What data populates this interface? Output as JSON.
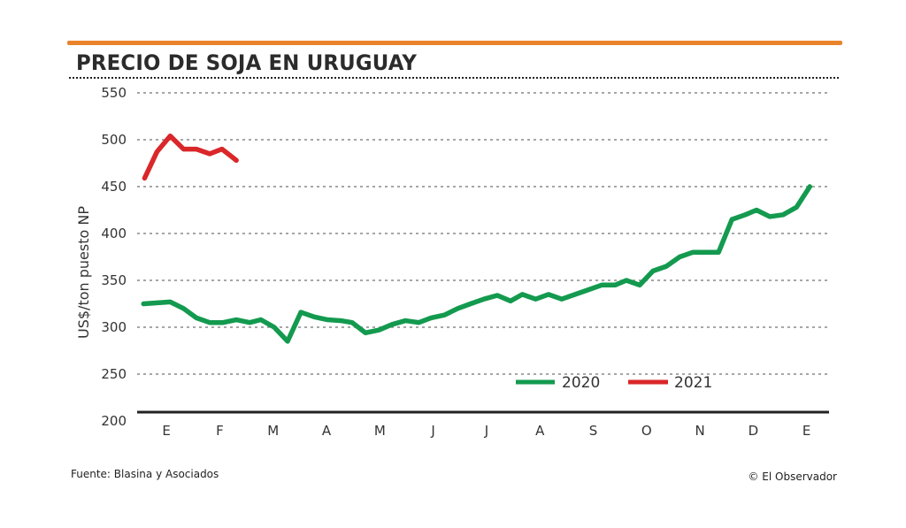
{
  "chart_data": {
    "type": "line",
    "title": "PRECIO DE SOJA EN URUGUAY",
    "ylabel": "US$/ton puesto NP",
    "xlabel": "",
    "ylim": [
      200,
      550
    ],
    "xlim": [
      -0.55,
      12.42
    ],
    "yticks": [
      200,
      250,
      300,
      350,
      400,
      450,
      500,
      550
    ],
    "yticklabels": [
      "200",
      "250",
      "300",
      "350",
      "400",
      "450",
      "500",
      "550"
    ],
    "xticks": [
      0,
      1,
      2,
      3,
      4,
      5,
      6,
      7,
      8,
      9,
      10,
      11,
      12
    ],
    "xticklabels": [
      "E",
      "F",
      "M",
      "A",
      "M",
      "J",
      "J",
      "A",
      "S",
      "O",
      "N",
      "D",
      "E"
    ],
    "grid": "horizontal dotted",
    "legend_position": "bottom-right",
    "series": [
      {
        "name": "2020",
        "color": "#139a4f",
        "x": [
          -0.43,
          0.07,
          0.32,
          0.56,
          0.81,
          1.06,
          1.31,
          1.56,
          1.77,
          2.02,
          2.27,
          2.52,
          2.77,
          3.02,
          3.27,
          3.48,
          3.73,
          3.98,
          4.23,
          4.48,
          4.73,
          4.96,
          5.21,
          5.46,
          5.7,
          5.95,
          6.2,
          6.45,
          6.67,
          6.92,
          7.16,
          7.41,
          7.66,
          7.91,
          8.16,
          8.41,
          8.62,
          8.87,
          9.12,
          9.37,
          9.62,
          9.87,
          10.1,
          10.35,
          10.6,
          10.85,
          11.06,
          11.31,
          11.56,
          11.81,
          12.06
        ],
        "values": [
          325,
          327,
          320,
          310,
          305,
          305,
          308,
          305,
          308,
          300,
          285,
          316,
          311,
          308,
          307,
          305,
          294,
          297,
          303,
          307,
          305,
          310,
          313,
          320,
          325,
          330,
          334,
          328,
          335,
          330,
          335,
          330,
          335,
          340,
          345,
          345,
          350,
          345,
          360,
          365,
          375,
          380,
          380,
          380,
          415,
          420,
          425,
          418,
          420,
          428,
          450
        ]
      },
      {
        "name": "2021",
        "color": "#d9272a",
        "x": [
          -0.41,
          -0.18,
          0.07,
          0.32,
          0.56,
          0.81,
          1.04,
          1.31
        ],
        "values": [
          459,
          487,
          504,
          490,
          490,
          485,
          490,
          478
        ]
      }
    ]
  },
  "footer": {
    "source": "Fuente: Blasina y Asociados",
    "credit": "© El Observador"
  }
}
